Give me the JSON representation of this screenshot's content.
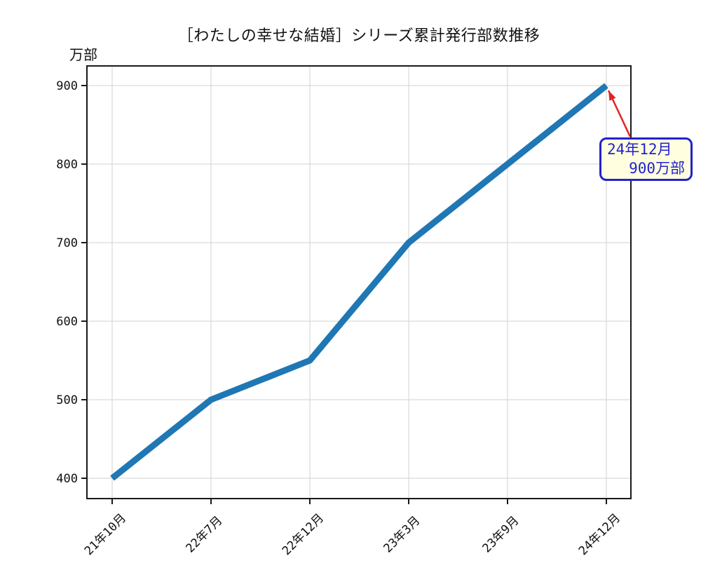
{
  "chart_data": {
    "type": "line",
    "title": "［わたしの幸せな結婚］シリーズ累計発行部数推移",
    "ylabel": "万部",
    "categories": [
      "21年10月",
      "22年7月",
      "22年12月",
      "23年3月",
      "23年9月",
      "24年12月"
    ],
    "values": [
      400,
      500,
      550,
      700,
      800,
      900
    ],
    "yticks": [
      400,
      500,
      600,
      700,
      800,
      900
    ],
    "ylim": [
      375,
      925
    ],
    "grid": true,
    "legend": false,
    "colors": {
      "line": "#1f77b4",
      "grid": "#d9d9d9",
      "axis": "#1a1a1a",
      "text": "#111111",
      "annotation_border": "#2222cc",
      "annotation_text": "#2222cc",
      "annotation_fill": "#ffffe0",
      "arrow": "#e62222"
    },
    "annotation": {
      "lines": [
        "24年12月",
        "900万部"
      ],
      "target_category": "24年12月",
      "target_value": 900
    }
  }
}
